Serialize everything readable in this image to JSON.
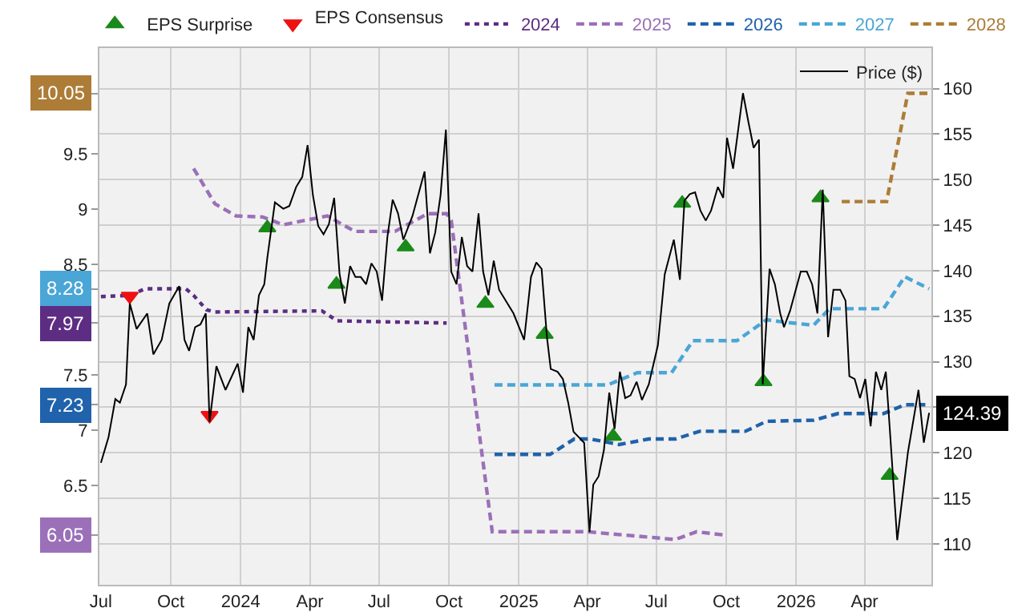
{
  "chart_data": {
    "type": "line",
    "legend_title": "EPS Consensus",
    "legend": "top",
    "grid": true,
    "xlim": [
      "2023-06-29",
      "2026-06-28"
    ],
    "xticks": [
      {
        "value": "2023-07-01",
        "label": "Jul"
      },
      {
        "value": "2023-10-01",
        "label": "Oct"
      },
      {
        "value": "2024-01-01",
        "label": "2024"
      },
      {
        "value": "2024-04-01",
        "label": "Apr"
      },
      {
        "value": "2024-07-01",
        "label": "Jul"
      },
      {
        "value": "2024-10-01",
        "label": "Oct"
      },
      {
        "value": "2025-01-01",
        "label": "2025"
      },
      {
        "value": "2025-04-01",
        "label": "Apr"
      },
      {
        "value": "2025-07-01",
        "label": "Jul"
      },
      {
        "value": "2025-10-01",
        "label": "Oct"
      },
      {
        "value": "2026-01-01",
        "label": "2026"
      },
      {
        "value": "2026-04-01",
        "label": "Apr"
      }
    ],
    "ylim": [
      5.6,
      10.46
    ],
    "yticks": [
      6.05,
      6.5,
      7,
      7.23,
      7.5,
      7.97,
      8.28,
      8.5,
      9,
      9.5,
      10.05
    ],
    "y2lim": [
      105.5,
      164.45
    ],
    "y2ticks": [
      110,
      115,
      120,
      {
        "value": 125,
        "label": null
      },
      130,
      135,
      140,
      145,
      150,
      155,
      160
    ],
    "series": [
      {
        "name": "2024",
        "axis": "y",
        "line_style": "dotted",
        "color": "#5c2d82",
        "x": [
          "2023-07-01",
          "2023-08-08",
          "2023-08-28",
          "2023-10-21",
          "2023-10-31",
          "2023-11-17",
          "2023-11-27",
          "2024-04-17",
          "2024-05-07",
          "2024-09-28"
        ],
        "values": [
          8.21,
          8.22,
          8.28,
          8.28,
          8.22,
          8.09,
          8.07,
          8.08,
          7.99,
          7.97
        ]
      },
      {
        "name": "2025",
        "axis": "y",
        "line_style": "dashed",
        "color": "#9b70b8",
        "x": [
          "2023-10-31",
          "2023-11-28",
          "2023-12-26",
          "2024-01-30",
          "2024-02-26",
          "2024-04-24",
          "2024-05-30",
          "2024-07-22",
          "2024-09-03",
          "2024-09-28",
          "2024-10-04",
          "2024-11-27",
          "2025-04-01",
          "2025-07-26",
          "2025-08-23",
          "2025-09-29"
        ],
        "values": [
          9.37,
          9.05,
          8.94,
          8.93,
          8.86,
          8.94,
          8.8,
          8.8,
          8.96,
          8.96,
          8.9,
          6.08,
          6.08,
          6.01,
          6.08,
          6.05
        ]
      },
      {
        "name": "2026",
        "axis": "y",
        "line_style": "dashed",
        "color": "#2062ab",
        "x": [
          "2024-11-30",
          "2025-02-11",
          "2025-03-15",
          "2025-04-05",
          "2025-05-13",
          "2025-06-21",
          "2025-07-26",
          "2025-08-27",
          "2025-10-26",
          "2025-11-23",
          "2026-01-24",
          "2026-02-25",
          "2026-04-26",
          "2026-05-24",
          "2026-06-20"
        ],
        "values": [
          6.78,
          6.78,
          6.92,
          6.92,
          6.87,
          6.92,
          6.92,
          6.99,
          6.99,
          7.08,
          7.09,
          7.15,
          7.15,
          7.23,
          7.23
        ]
      },
      {
        "name": "2027",
        "axis": "y",
        "line_style": "dashed",
        "color": "#4aa6d6",
        "x": [
          "2024-11-30",
          "2025-04-28",
          "2025-06-06",
          "2025-07-21",
          "2025-08-18",
          "2025-10-15",
          "2025-11-23",
          "2025-12-14",
          "2026-01-24",
          "2026-02-14",
          "2026-04-26",
          "2026-05-24",
          "2026-06-25"
        ],
        "values": [
          7.41,
          7.41,
          7.52,
          7.52,
          7.81,
          7.81,
          8.0,
          7.98,
          7.95,
          8.1,
          8.1,
          8.39,
          8.28
        ]
      },
      {
        "name": "2028",
        "axis": "y",
        "line_style": "dashed",
        "color": "#ad7c37",
        "x": [
          "2026-03-02",
          "2026-04-30",
          "2026-05-28",
          "2026-06-25"
        ],
        "values": [
          9.07,
          9.07,
          10.05,
          10.05
        ]
      },
      {
        "name": "Price ($)",
        "axis": "y2",
        "line_style": "solid",
        "color": "#000000",
        "x": [
          "2023-07-01",
          "2023-07-11",
          "2023-07-20",
          "2023-07-26",
          "2023-08-03",
          "2023-08-08",
          "2023-08-17",
          "2023-08-31",
          "2023-09-08",
          "2023-09-19",
          "2023-09-29",
          "2023-10-12",
          "2023-10-19",
          "2023-10-25",
          "2023-11-02",
          "2023-11-09",
          "2023-11-16",
          "2023-11-21",
          "2023-11-30",
          "2023-12-12",
          "2023-12-28",
          "2024-01-04",
          "2024-01-11",
          "2024-01-18",
          "2024-01-25",
          "2024-02-01",
          "2024-02-05",
          "2024-02-15",
          "2024-02-26",
          "2024-03-05",
          "2024-03-14",
          "2024-03-22",
          "2024-03-29",
          "2024-04-05",
          "2024-04-12",
          "2024-04-19",
          "2024-04-26",
          "2024-05-03",
          "2024-05-10",
          "2024-05-17",
          "2024-05-24",
          "2024-05-31",
          "2024-06-07",
          "2024-06-14",
          "2024-06-21",
          "2024-06-28",
          "2024-07-05",
          "2024-07-12",
          "2024-07-19",
          "2024-07-26",
          "2024-08-02",
          "2024-08-14",
          "2024-08-30",
          "2024-09-06",
          "2024-09-13",
          "2024-09-20",
          "2024-09-27",
          "2024-10-04",
          "2024-10-11",
          "2024-10-18",
          "2024-10-25",
          "2024-11-01",
          "2024-11-09",
          "2024-11-15",
          "2024-11-22",
          "2024-11-29",
          "2024-12-06",
          "2024-12-25",
          "2025-01-08",
          "2025-01-17",
          "2025-01-24",
          "2025-01-31",
          "2025-02-07",
          "2025-02-12",
          "2025-02-21",
          "2025-02-28",
          "2025-03-07",
          "2025-03-14",
          "2025-03-21",
          "2025-03-28",
          "2025-04-04",
          "2025-04-09",
          "2025-04-16",
          "2025-04-23",
          "2025-04-30",
          "2025-05-07",
          "2025-05-14",
          "2025-05-21",
          "2025-05-28",
          "2025-06-05",
          "2025-06-12",
          "2025-06-21",
          "2025-07-03",
          "2025-07-12",
          "2025-07-24",
          "2025-08-01",
          "2025-08-07",
          "2025-08-14",
          "2025-08-21",
          "2025-08-28",
          "2025-09-04",
          "2025-09-11",
          "2025-09-20",
          "2025-09-27",
          "2025-10-02",
          "2025-10-10",
          "2025-10-23",
          "2025-10-30",
          "2025-11-06",
          "2025-11-13",
          "2025-11-18",
          "2025-11-27",
          "2025-12-04",
          "2025-12-11",
          "2025-12-16",
          "2025-12-24",
          "2026-01-07",
          "2026-01-15",
          "2026-01-22",
          "2026-01-29",
          "2026-02-05",
          "2026-02-12",
          "2026-02-19",
          "2026-02-28",
          "2026-03-07",
          "2026-03-12",
          "2026-03-19",
          "2026-03-26",
          "2026-04-02",
          "2026-04-09",
          "2026-04-16",
          "2026-04-23",
          "2026-04-29",
          "2026-05-04",
          "2026-05-14",
          "2026-05-28",
          "2026-06-11",
          "2026-06-18",
          "2026-06-25"
        ],
        "values": [
          118.9,
          121.7,
          125.9,
          125.5,
          127.5,
          136.4,
          133.6,
          135.3,
          130.8,
          132.4,
          136.4,
          138.3,
          132.4,
          131.2,
          133.8,
          134.1,
          135.3,
          123.4,
          129.5,
          126.9,
          129.8,
          126.6,
          133.8,
          132.4,
          137.3,
          138.5,
          141.4,
          147.5,
          146.8,
          147.1,
          149.2,
          150.3,
          153.8,
          148.3,
          144.9,
          144.0,
          145.1,
          148.0,
          139.7,
          136.4,
          140.5,
          139.3,
          139.3,
          138.5,
          140.8,
          139.9,
          136.7,
          143.7,
          147.8,
          146.3,
          143.4,
          146.0,
          150.9,
          141.9,
          144.2,
          148.3,
          155.5,
          139.9,
          138.5,
          143.7,
          140.5,
          139.9,
          146.3,
          139.9,
          137.3,
          141.1,
          137.9,
          135.3,
          132.4,
          139.3,
          140.9,
          140.2,
          132.7,
          129.2,
          128.9,
          128.1,
          125.5,
          122.3,
          121.7,
          121.1,
          111.3,
          116.5,
          117.4,
          120.3,
          126.6,
          122.6,
          128.9,
          126.0,
          126.3,
          127.8,
          125.8,
          127.5,
          131.8,
          139.6,
          143.4,
          139.0,
          147.7,
          148.4,
          148.6,
          146.6,
          145.5,
          146.6,
          149.2,
          148.0,
          154.6,
          151.2,
          159.5,
          156.4,
          153.5,
          154.4,
          127.5,
          140.2,
          138.5,
          135.3,
          133.8,
          135.6,
          139.9,
          139.9,
          138.5,
          135.3,
          148.9,
          132.7,
          137.9,
          137.9,
          136.7,
          128.4,
          128.1,
          126.0,
          128.1,
          122.9,
          128.9,
          126.9,
          128.9,
          122.9,
          110.4,
          120.0,
          126.9,
          121.1,
          124.39
        ],
        "value_labels": [
          null,
          null,
          null,
          null,
          null,
          null,
          null,
          null,
          null,
          null,
          null,
          null,
          null,
          null,
          null,
          null,
          null,
          null,
          null,
          null,
          null,
          null,
          null,
          null,
          null,
          null,
          null,
          null,
          null,
          null,
          null,
          null,
          null,
          null,
          null,
          null,
          null,
          null,
          null,
          null,
          null,
          null,
          null,
          null,
          null,
          null,
          null,
          null,
          null,
          null,
          null,
          null,
          null,
          null,
          null,
          null,
          null,
          null,
          null,
          null,
          null,
          null,
          null,
          null,
          null,
          null,
          null,
          null,
          null,
          null,
          null,
          null,
          null,
          null,
          null,
          null,
          null,
          null,
          null,
          null,
          null,
          null,
          null,
          null,
          null,
          null,
          null,
          null,
          null,
          null,
          null,
          null,
          null,
          null,
          null,
          null,
          null,
          null,
          null,
          null,
          null,
          null,
          null,
          null,
          null,
          null,
          null,
          null,
          null,
          null,
          null,
          null,
          null,
          null,
          null,
          null,
          null,
          null,
          null,
          null,
          null,
          null,
          null,
          null,
          null,
          null,
          null,
          null,
          null,
          null,
          null,
          null,
          null,
          null,
          null,
          null,
          null,
          null,
          "124.39"
        ]
      },
      {
        "name": "EPS Surprise",
        "type": "scatter",
        "axis": "y2",
        "marker": "triangle",
        "color": "#1a8a1a",
        "x": [
          "2024-02-05",
          "2024-05-06",
          "2024-08-05",
          "2024-11-18",
          "2025-02-04",
          "2025-05-05",
          "2025-08-04",
          "2025-11-19",
          "2026-02-02",
          "2026-05-04"
        ],
        "values": [
          144.7,
          138.5,
          142.6,
          136.4,
          133.0,
          121.8,
          147.4,
          127.8,
          148.0,
          117.5
        ]
      },
      {
        "type": "scatter",
        "axis": "y2",
        "marker": "triangle-down",
        "color": "#ee1111",
        "x": [
          "2023-08-08",
          "2023-11-21"
        ],
        "values": [
          137.2,
          124.1
        ]
      }
    ]
  }
}
